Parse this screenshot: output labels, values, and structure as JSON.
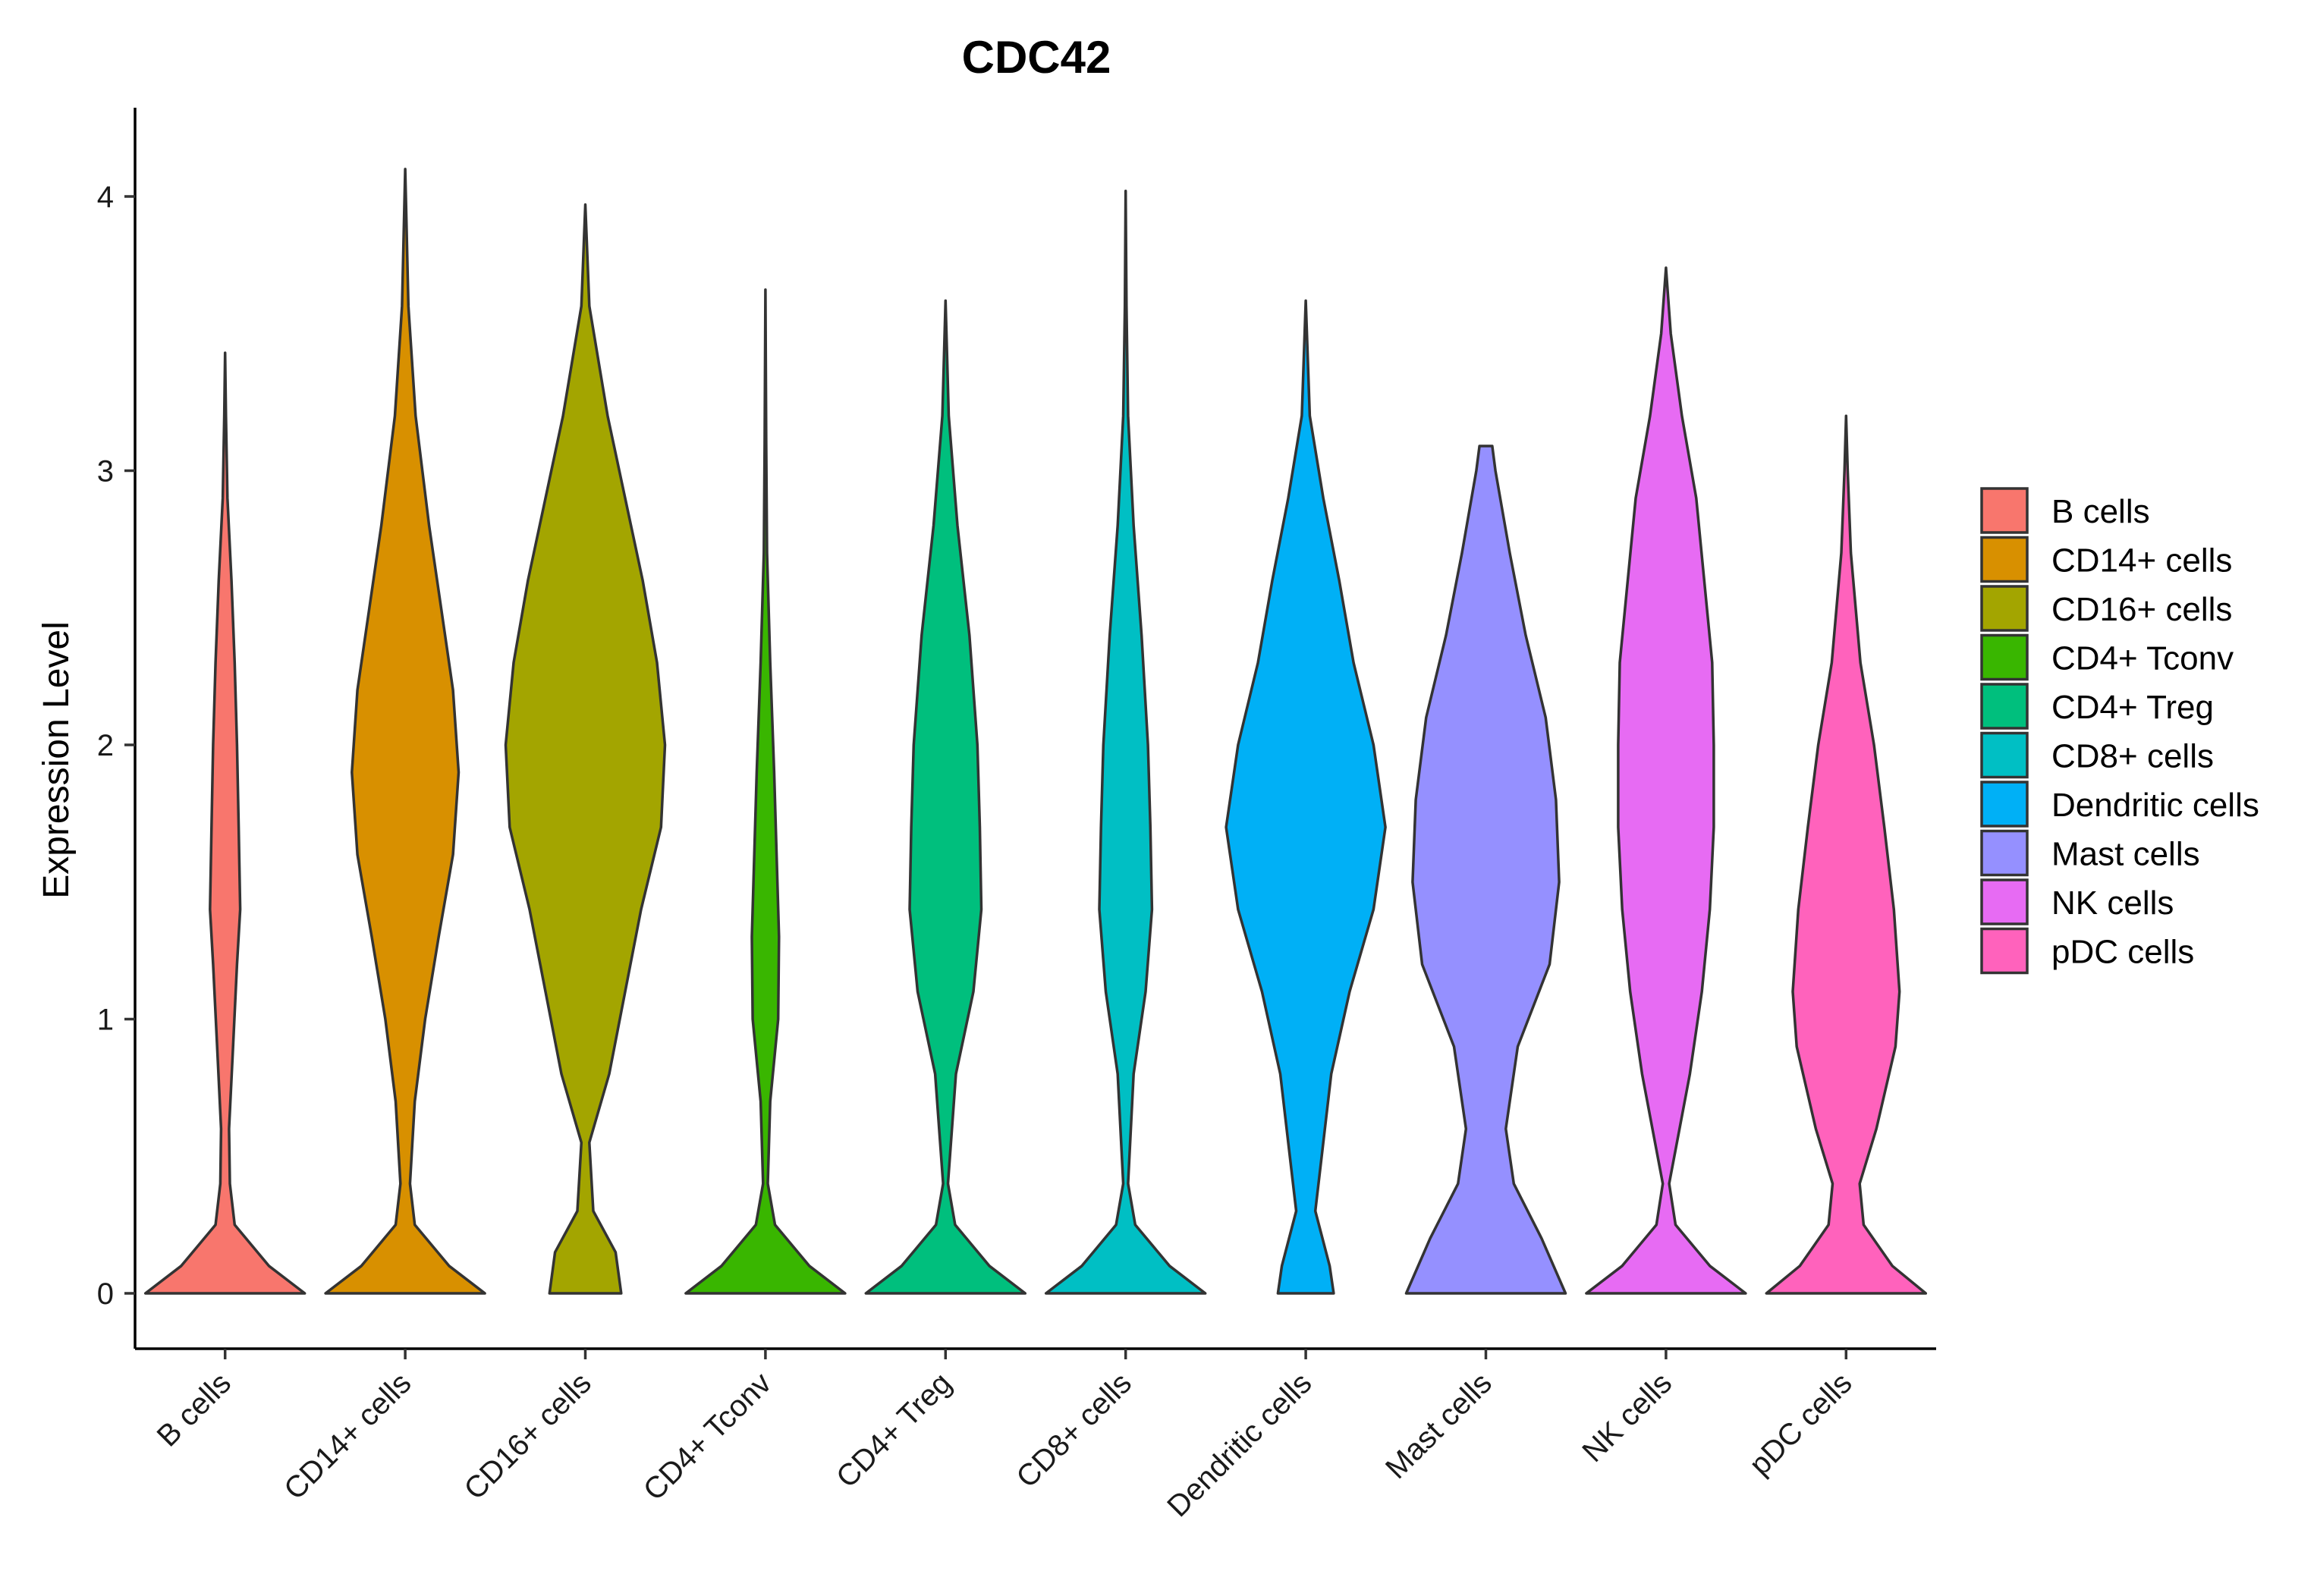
{
  "chart_data": {
    "type": "violin",
    "title": "CDC42",
    "xlabel": "",
    "ylabel": "Expression Level",
    "ylim": [
      -0.2,
      4.3
    ],
    "yticks": [
      0,
      1,
      2,
      3,
      4
    ],
    "legend_position": "right",
    "categories": [
      "B cells",
      "CD14+ cells",
      "CD16+ cells",
      "CD4+ Tconv",
      "CD4+ Treg",
      "CD8+ cells",
      "Dendritic cells",
      "Mast cells",
      "NK cells",
      "pDC cells"
    ],
    "colors": [
      "#F8766D",
      "#D89000",
      "#A3A500",
      "#39B600",
      "#00BF7D",
      "#00BFC4",
      "#00B0F6",
      "#9590FF",
      "#E76BF3",
      "#FF62BC"
    ],
    "max_values": [
      3.43,
      4.1,
      3.97,
      3.66,
      3.62,
      4.02,
      3.62,
      3.09,
      3.74,
      3.2
    ],
    "violins": [
      {
        "name": "B cells",
        "profile": [
          [
            0,
            1.0
          ],
          [
            0.1,
            0.55
          ],
          [
            0.25,
            0.12
          ],
          [
            0.4,
            0.06
          ],
          [
            0.6,
            0.05
          ],
          [
            0.9,
            0.1
          ],
          [
            1.2,
            0.15
          ],
          [
            1.4,
            0.19
          ],
          [
            1.7,
            0.17
          ],
          [
            2.0,
            0.15
          ],
          [
            2.3,
            0.12
          ],
          [
            2.6,
            0.08
          ],
          [
            2.9,
            0.03
          ],
          [
            3.2,
            0.01
          ],
          [
            3.43,
            0.0
          ]
        ]
      },
      {
        "name": "CD14+ cells",
        "profile": [
          [
            0,
            1.0
          ],
          [
            0.1,
            0.55
          ],
          [
            0.25,
            0.12
          ],
          [
            0.4,
            0.06
          ],
          [
            0.7,
            0.12
          ],
          [
            1.0,
            0.25
          ],
          [
            1.3,
            0.42
          ],
          [
            1.6,
            0.6
          ],
          [
            1.9,
            0.67
          ],
          [
            2.2,
            0.6
          ],
          [
            2.5,
            0.45
          ],
          [
            2.8,
            0.3
          ],
          [
            3.2,
            0.13
          ],
          [
            3.6,
            0.04
          ],
          [
            4.1,
            0.0
          ]
        ]
      },
      {
        "name": "CD16+ cells",
        "profile": [
          [
            0,
            0.45
          ],
          [
            0.15,
            0.38
          ],
          [
            0.3,
            0.1
          ],
          [
            0.55,
            0.05
          ],
          [
            0.8,
            0.3
          ],
          [
            1.1,
            0.5
          ],
          [
            1.4,
            0.7
          ],
          [
            1.7,
            0.95
          ],
          [
            2.0,
            1.0
          ],
          [
            2.3,
            0.9
          ],
          [
            2.6,
            0.72
          ],
          [
            2.9,
            0.5
          ],
          [
            3.2,
            0.28
          ],
          [
            3.6,
            0.05
          ],
          [
            3.97,
            0.0
          ]
        ]
      },
      {
        "name": "CD4+ Tconv",
        "profile": [
          [
            0,
            1.0
          ],
          [
            0.1,
            0.55
          ],
          [
            0.25,
            0.12
          ],
          [
            0.4,
            0.03
          ],
          [
            0.7,
            0.06
          ],
          [
            1.0,
            0.16
          ],
          [
            1.3,
            0.17
          ],
          [
            1.6,
            0.14
          ],
          [
            1.9,
            0.11
          ],
          [
            2.3,
            0.06
          ],
          [
            2.7,
            0.02
          ],
          [
            3.1,
            0.01
          ],
          [
            3.66,
            0.0
          ]
        ]
      },
      {
        "name": "CD4+ Treg",
        "profile": [
          [
            0,
            1.0
          ],
          [
            0.1,
            0.55
          ],
          [
            0.25,
            0.12
          ],
          [
            0.4,
            0.03
          ],
          [
            0.8,
            0.13
          ],
          [
            1.1,
            0.35
          ],
          [
            1.4,
            0.45
          ],
          [
            1.7,
            0.43
          ],
          [
            2.0,
            0.4
          ],
          [
            2.4,
            0.3
          ],
          [
            2.8,
            0.15
          ],
          [
            3.2,
            0.04
          ],
          [
            3.62,
            0.0
          ]
        ]
      },
      {
        "name": "CD8+ cells",
        "profile": [
          [
            0,
            1.0
          ],
          [
            0.1,
            0.55
          ],
          [
            0.25,
            0.12
          ],
          [
            0.4,
            0.03
          ],
          [
            0.8,
            0.1
          ],
          [
            1.1,
            0.25
          ],
          [
            1.4,
            0.33
          ],
          [
            1.7,
            0.31
          ],
          [
            2.0,
            0.28
          ],
          [
            2.4,
            0.2
          ],
          [
            2.8,
            0.1
          ],
          [
            3.2,
            0.03
          ],
          [
            3.6,
            0.01
          ],
          [
            4.02,
            0.0
          ]
        ]
      },
      {
        "name": "Dendritic cells",
        "profile": [
          [
            0,
            0.35
          ],
          [
            0.1,
            0.3
          ],
          [
            0.3,
            0.12
          ],
          [
            0.5,
            0.2
          ],
          [
            0.8,
            0.32
          ],
          [
            1.1,
            0.55
          ],
          [
            1.4,
            0.85
          ],
          [
            1.7,
            1.0
          ],
          [
            2.0,
            0.85
          ],
          [
            2.3,
            0.6
          ],
          [
            2.6,
            0.42
          ],
          [
            2.9,
            0.22
          ],
          [
            3.2,
            0.05
          ],
          [
            3.62,
            0.0
          ]
        ]
      },
      {
        "name": "Mast cells",
        "profile": [
          [
            0,
            1.0
          ],
          [
            0.2,
            0.7
          ],
          [
            0.4,
            0.35
          ],
          [
            0.6,
            0.25
          ],
          [
            0.9,
            0.4
          ],
          [
            1.2,
            0.8
          ],
          [
            1.5,
            0.92
          ],
          [
            1.8,
            0.88
          ],
          [
            2.1,
            0.75
          ],
          [
            2.4,
            0.5
          ],
          [
            2.7,
            0.3
          ],
          [
            3.0,
            0.12
          ],
          [
            3.09,
            0.08
          ]
        ]
      },
      {
        "name": "NK cells",
        "profile": [
          [
            0,
            1.0
          ],
          [
            0.1,
            0.55
          ],
          [
            0.25,
            0.12
          ],
          [
            0.4,
            0.04
          ],
          [
            0.8,
            0.3
          ],
          [
            1.1,
            0.45
          ],
          [
            1.4,
            0.55
          ],
          [
            1.7,
            0.6
          ],
          [
            2.0,
            0.6
          ],
          [
            2.3,
            0.58
          ],
          [
            2.6,
            0.48
          ],
          [
            2.9,
            0.38
          ],
          [
            3.2,
            0.2
          ],
          [
            3.5,
            0.06
          ],
          [
            3.74,
            0.0
          ]
        ]
      },
      {
        "name": "pDC cells",
        "profile": [
          [
            0,
            1.0
          ],
          [
            0.1,
            0.58
          ],
          [
            0.25,
            0.22
          ],
          [
            0.4,
            0.17
          ],
          [
            0.6,
            0.38
          ],
          [
            0.9,
            0.62
          ],
          [
            1.1,
            0.67
          ],
          [
            1.4,
            0.6
          ],
          [
            1.7,
            0.48
          ],
          [
            2.0,
            0.35
          ],
          [
            2.3,
            0.18
          ],
          [
            2.7,
            0.06
          ],
          [
            3.0,
            0.02
          ],
          [
            3.2,
            0.0
          ]
        ]
      }
    ]
  }
}
